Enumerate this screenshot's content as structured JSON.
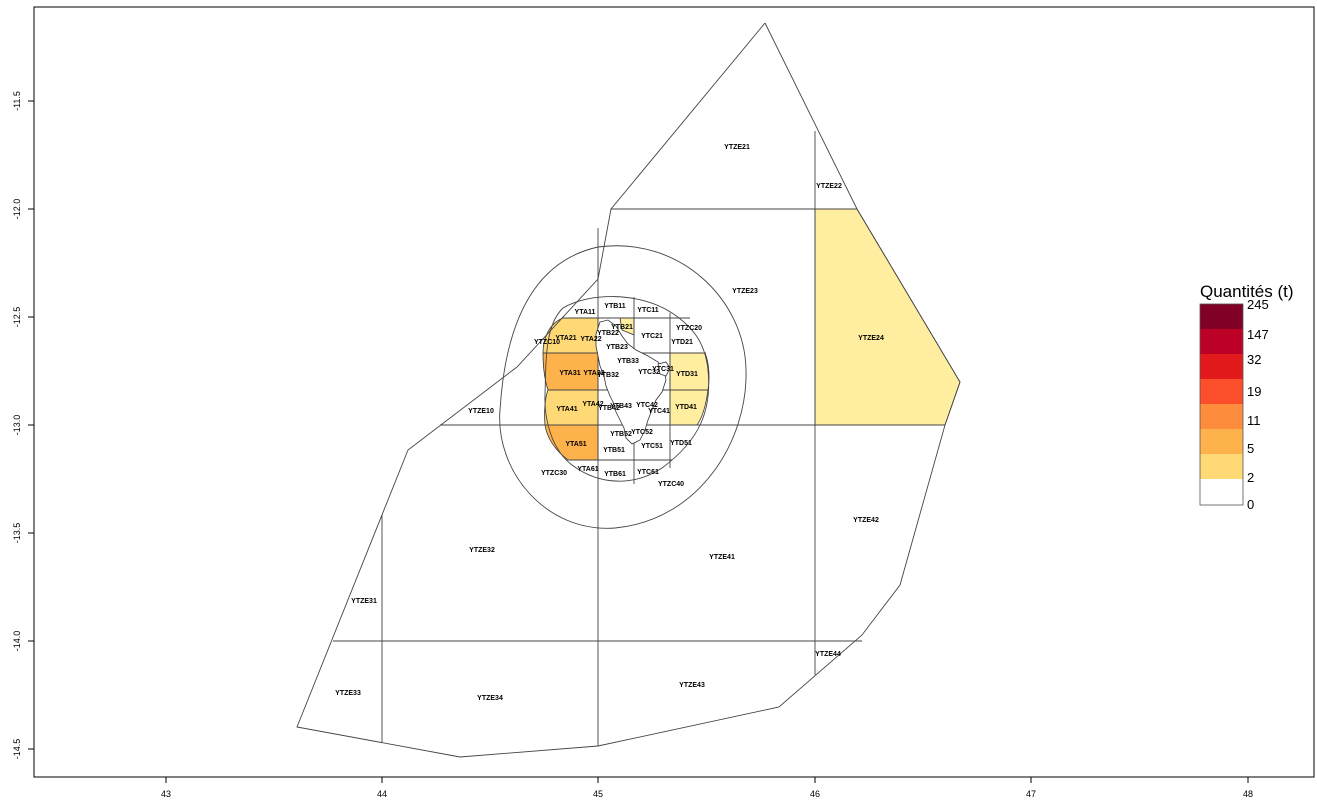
{
  "x_ticks": [
    "43",
    "44",
    "45",
    "46",
    "47",
    "48"
  ],
  "y_ticks": [
    "-11.5",
    "-12.0",
    "-12.5",
    "-13.0",
    "-13.5",
    "-14.0",
    "-14.5"
  ],
  "legend": {
    "title": "Quantités (t)",
    "breaks": [
      "245",
      "147",
      "32",
      "19",
      "11",
      "5",
      "2",
      "0"
    ],
    "colors": [
      "#800026",
      "#BD0026",
      "#E31A1C",
      "#FC4E2A",
      "#FD8D3C",
      "#FEB24C",
      "#FED976",
      "#FFEDA0"
    ]
  },
  "zones": [
    {
      "code": "YTZE21"
    },
    {
      "code": "YTZE22"
    },
    {
      "code": "YTZE23"
    },
    {
      "code": "YTZE24"
    },
    {
      "code": "YTZE10"
    },
    {
      "code": "YTZE32"
    },
    {
      "code": "YTZE41"
    },
    {
      "code": "YTZE42"
    },
    {
      "code": "YTZE31"
    },
    {
      "code": "YTZE33"
    },
    {
      "code": "YTZE34"
    },
    {
      "code": "YTZE43"
    },
    {
      "code": "YTZE44"
    },
    {
      "code": "YTZC10"
    },
    {
      "code": "YTZC20"
    },
    {
      "code": "YTZC30"
    },
    {
      "code": "YTZC40"
    },
    {
      "code": "YTA11"
    },
    {
      "code": "YTA21"
    },
    {
      "code": "YTA22"
    },
    {
      "code": "YTA31"
    },
    {
      "code": "YTA32"
    },
    {
      "code": "YTA41"
    },
    {
      "code": "YTA42"
    },
    {
      "code": "YTA51"
    },
    {
      "code": "YTA61"
    },
    {
      "code": "YTB11"
    },
    {
      "code": "YTB21"
    },
    {
      "code": "YTB22"
    },
    {
      "code": "YTB23"
    },
    {
      "code": "YTB32"
    },
    {
      "code": "YTB33"
    },
    {
      "code": "YTB42"
    },
    {
      "code": "YTB43"
    },
    {
      "code": "YTB51"
    },
    {
      "code": "YTB52"
    },
    {
      "code": "YTB61"
    },
    {
      "code": "YTC11"
    },
    {
      "code": "YTC21"
    },
    {
      "code": "YTC31"
    },
    {
      "code": "YTC32"
    },
    {
      "code": "YTC41"
    },
    {
      "code": "YTC42"
    },
    {
      "code": "YTC51"
    },
    {
      "code": "YTC52"
    },
    {
      "code": "YTC61"
    },
    {
      "code": "YTD21"
    },
    {
      "code": "YTD31"
    },
    {
      "code": "YTD41"
    },
    {
      "code": "YTD51"
    }
  ]
}
